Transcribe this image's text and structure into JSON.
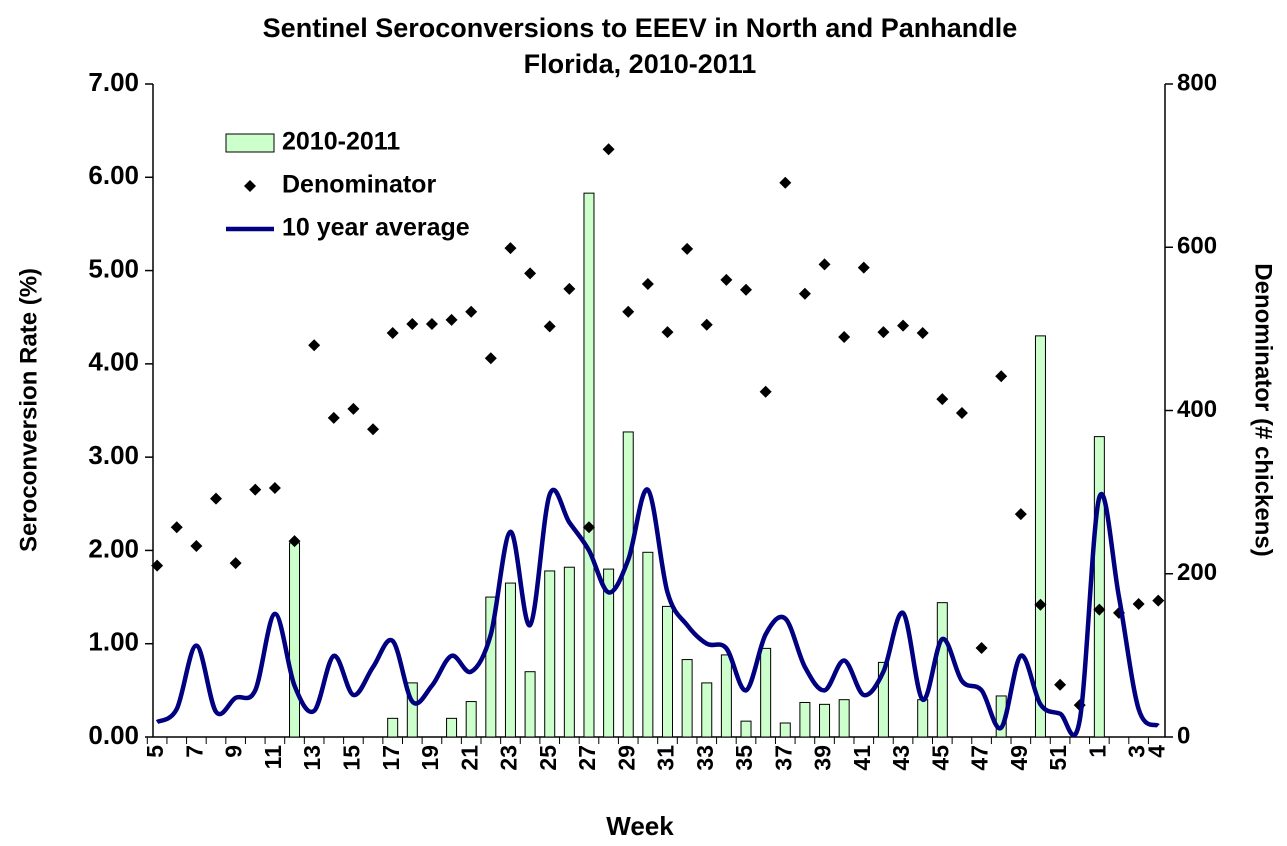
{
  "chart_data": {
    "type": "combo",
    "title": [
      "Sentinel Seroconversions to EEEV in North and Panhandle",
      "Florida, 2010-2011"
    ],
    "x_label": "Week",
    "y_label": "Seroconversion Rate (%)",
    "y2_label": "Denominator (# chickens)",
    "categories": [
      "5",
      null,
      "7",
      null,
      "9",
      null,
      "11",
      null,
      "13",
      null,
      "15",
      null,
      "17",
      null,
      "19",
      null,
      "21",
      null,
      "23",
      null,
      "25",
      null,
      "27",
      null,
      "29",
      null,
      "31",
      null,
      "33",
      null,
      "35",
      null,
      "37",
      null,
      "39",
      null,
      "41",
      null,
      "43",
      null,
      "45",
      null,
      "47",
      null,
      "49",
      null,
      "51",
      null,
      "1",
      null,
      "3",
      "4"
    ],
    "ylim": [
      0,
      7
    ],
    "yticks": [
      {
        "value": 0,
        "label": "0.00"
      },
      {
        "value": 1,
        "label": "1.00"
      },
      {
        "value": 2,
        "label": "2.00"
      },
      {
        "value": 3,
        "label": "3.00"
      },
      {
        "value": 4,
        "label": "4.00"
      },
      {
        "value": 5,
        "label": "5.00"
      },
      {
        "value": 6,
        "label": "6.00"
      },
      {
        "value": 7,
        "label": "7.00"
      }
    ],
    "y2lim": [
      0,
      800
    ],
    "y2ticks": [
      0,
      200,
      400,
      600,
      800
    ],
    "series": [
      {
        "name": "2010-2011",
        "type": "bar",
        "color": "#ccffcc",
        "values": [
          0,
          0,
          0,
          0,
          0,
          0,
          0,
          2.08,
          0,
          0,
          0,
          0,
          0.2,
          0.58,
          0,
          0.2,
          0.38,
          1.5,
          1.65,
          0.7,
          1.78,
          1.82,
          5.83,
          1.8,
          3.27,
          1.98,
          1.4,
          0.83,
          0.58,
          0.88,
          0.17,
          0.95,
          0.15,
          0.37,
          0.35,
          0.4,
          0,
          0.8,
          0,
          0.4,
          1.44,
          0,
          0,
          0.44,
          0,
          4.3,
          0,
          0,
          3.22,
          0,
          0,
          0
        ]
      },
      {
        "name": "Denominator",
        "type": "scatter",
        "axis": "y2",
        "color": "#000000",
        "values": [
          210,
          257,
          234,
          292,
          213,
          303,
          305,
          240,
          480,
          391,
          402,
          377,
          495,
          506,
          506,
          511,
          521,
          464,
          599,
          568,
          503,
          549,
          257,
          720,
          521,
          555,
          496,
          598,
          505,
          560,
          548,
          423,
          679,
          543,
          579,
          490,
          575,
          496,
          504,
          495,
          414,
          397,
          109,
          442,
          273,
          162,
          64,
          39,
          156,
          152,
          163,
          167
        ]
      },
      {
        "name": "10 year average",
        "type": "line",
        "color": "#000080",
        "values": [
          0.16,
          0.3,
          0.98,
          0.27,
          0.42,
          0.5,
          1.32,
          0.55,
          0.28,
          0.87,
          0.45,
          0.75,
          1.03,
          0.38,
          0.55,
          0.87,
          0.7,
          1.1,
          2.2,
          1.2,
          2.6,
          2.3,
          2.0,
          1.55,
          1.9,
          2.65,
          1.55,
          1.2,
          1.0,
          0.95,
          0.5,
          1.1,
          1.27,
          0.75,
          0.5,
          0.82,
          0.45,
          0.7,
          1.33,
          0.4,
          1.05,
          0.6,
          0.5,
          0.1,
          0.87,
          0.35,
          0.25,
          0.18,
          2.57,
          1.5,
          0.3,
          0.12
        ]
      }
    ]
  }
}
